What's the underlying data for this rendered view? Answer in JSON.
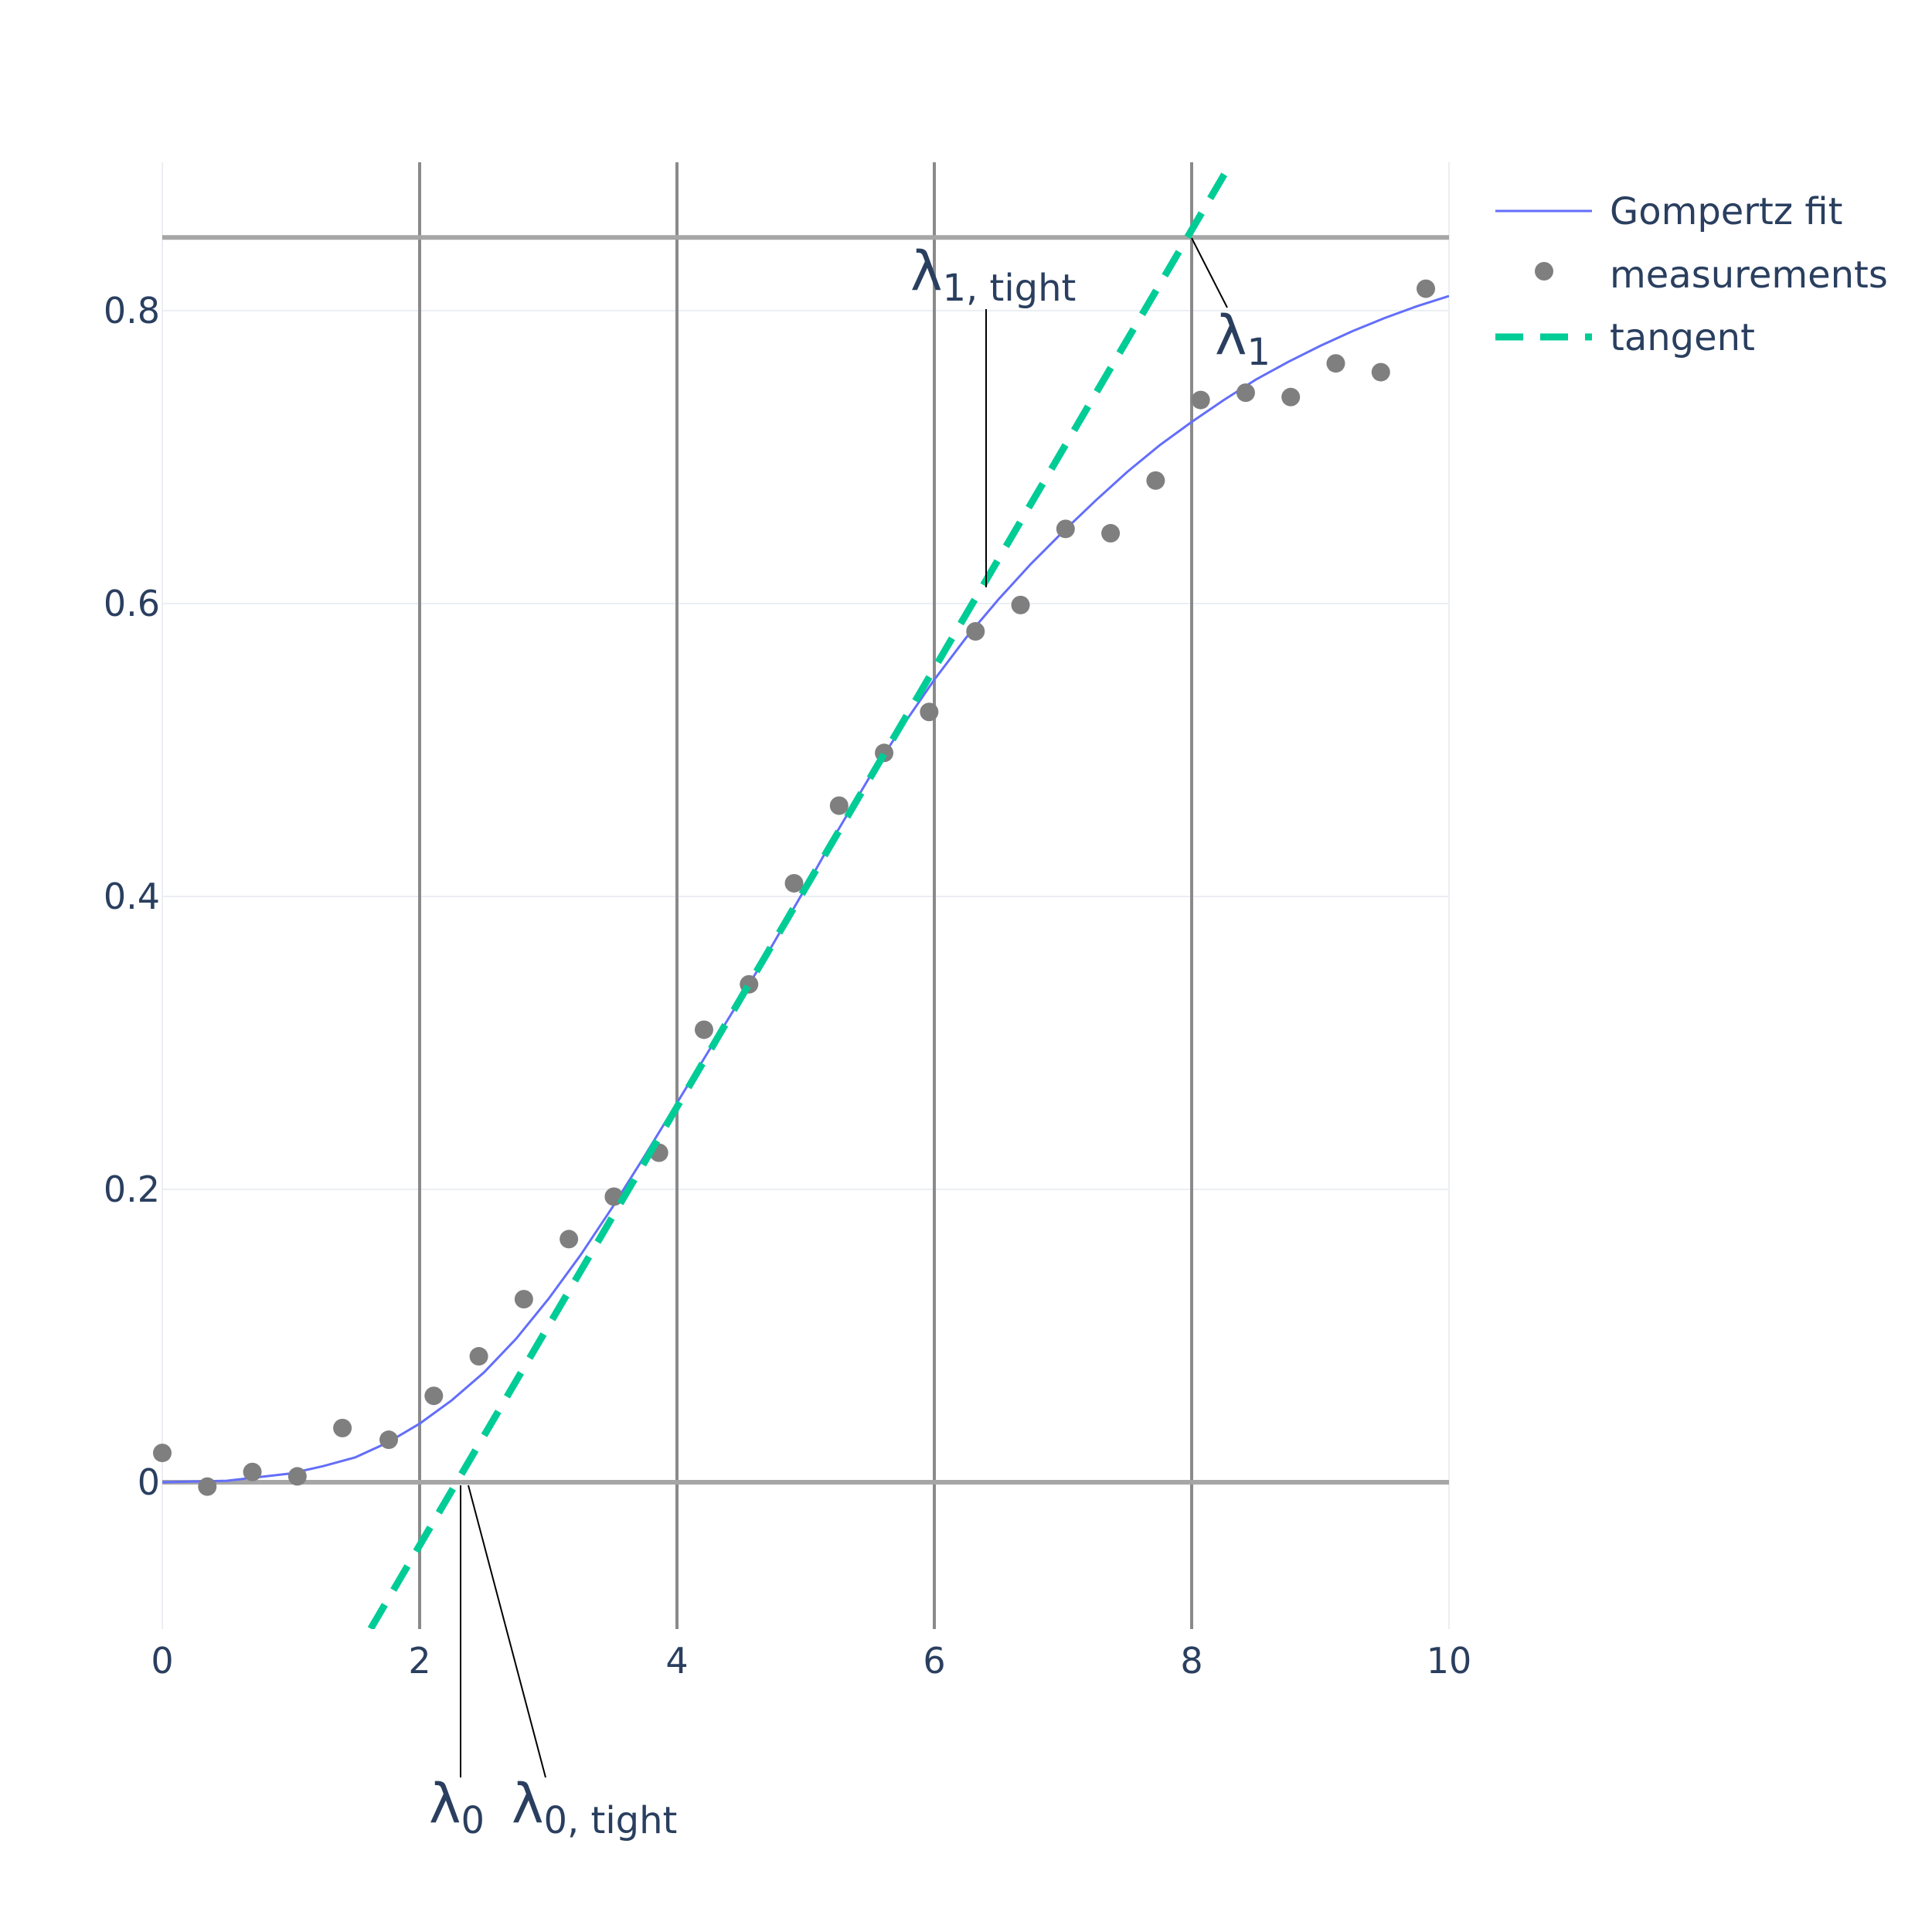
{
  "chart_data": {
    "type": "line",
    "title": "",
    "xlabel": "",
    "ylabel": "",
    "xlim": [
      0,
      10
    ],
    "ylim": [
      -0.1,
      0.9
    ],
    "x_ticks": [
      0,
      2,
      4,
      6,
      8,
      10
    ],
    "y_ticks": [
      0,
      0.2,
      0.4,
      0.6,
      0.8
    ],
    "x_tick_labels": [
      "0",
      "2",
      "4",
      "6",
      "8",
      "10"
    ],
    "y_tick_labels": [
      "0",
      "0.2",
      "0.4",
      "0.6",
      "0.8"
    ],
    "grid": true,
    "reference_lines": {
      "horizontal": [
        0,
        0.85
      ],
      "vertical": [
        2,
        4,
        6,
        8
      ]
    },
    "legend_position": "top-right",
    "series": [
      {
        "name": "Gompertz fit",
        "kind": "line",
        "color": "#636efa",
        "x": [
          0,
          0.5,
          1,
          1.25,
          1.5,
          1.75,
          2,
          2.25,
          2.5,
          2.75,
          3,
          3.25,
          3.5,
          3.75,
          4,
          4.25,
          4.5,
          4.75,
          5,
          5.25,
          5.5,
          5.75,
          6,
          6.25,
          6.5,
          6.75,
          7,
          7.25,
          7.5,
          7.75,
          8,
          8.25,
          8.5,
          8.75,
          9,
          9.25,
          9.5,
          9.75,
          10
        ],
        "y": [
          0.0,
          0.001,
          0.006,
          0.011,
          0.017,
          0.027,
          0.04,
          0.056,
          0.075,
          0.098,
          0.125,
          0.155,
          0.188,
          0.223,
          0.259,
          0.295,
          0.331,
          0.368,
          0.406,
          0.445,
          0.482,
          0.516,
          0.548,
          0.577,
          0.603,
          0.627,
          0.649,
          0.67,
          0.69,
          0.708,
          0.724,
          0.739,
          0.753,
          0.765,
          0.776,
          0.786,
          0.795,
          0.803,
          0.81
        ]
      },
      {
        "name": "measurements",
        "kind": "scatter",
        "color": "#7f7f7f",
        "x": [
          0,
          0.35,
          0.7,
          1.05,
          1.4,
          1.76,
          2.11,
          2.46,
          2.81,
          3.16,
          3.51,
          3.86,
          4.21,
          4.56,
          4.91,
          5.26,
          5.61,
          5.96,
          6.32,
          6.67,
          7.02,
          7.37,
          7.72,
          8.07,
          8.42,
          8.77,
          9.12,
          9.47,
          9.82
        ],
        "y": [
          0.02,
          -0.003,
          0.007,
          0.004,
          0.037,
          0.029,
          0.059,
          0.086,
          0.125,
          0.166,
          0.195,
          0.225,
          0.309,
          0.34,
          0.409,
          0.462,
          0.498,
          0.526,
          0.581,
          0.599,
          0.651,
          0.648,
          0.684,
          0.739,
          0.744,
          0.741,
          0.764,
          0.758,
          0.815
        ]
      },
      {
        "name": "tangent",
        "kind": "dashed-line",
        "color": "#00cc96",
        "x": [
          1.62,
          8.3
        ],
        "y": [
          -0.1,
          0.9
        ]
      }
    ],
    "annotations": [
      {
        "symbol": "λ",
        "subscript": "0",
        "x": 2.32,
        "y": 0,
        "placement": "below-axis"
      },
      {
        "symbol": "λ",
        "subscript": "0, tight",
        "x": 2.4,
        "y": 0,
        "placement": "below-axis"
      },
      {
        "symbol": "λ",
        "subscript": "1, tight",
        "x": 6.38,
        "y": 0.61,
        "placement": "above"
      },
      {
        "symbol": "λ",
        "subscript": "1",
        "x": 7.98,
        "y": 0.85,
        "placement": "right"
      }
    ]
  }
}
